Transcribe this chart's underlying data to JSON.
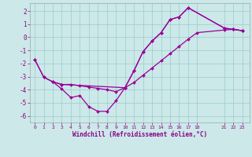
{
  "background_color": "#cce8e8",
  "grid_color": "#99cccc",
  "line_color": "#990099",
  "marker": "D",
  "marker_size": 2.0,
  "line_width": 0.9,
  "xlabel": "Windchill (Refroidissement éolien,°C)",
  "ylim": [
    -6.5,
    2.6
  ],
  "xlim": [
    -0.5,
    23.8
  ],
  "yticks": [
    -6,
    -5,
    -4,
    -3,
    -2,
    -1,
    0,
    1,
    2
  ],
  "xticks": [
    0,
    1,
    2,
    3,
    4,
    5,
    6,
    7,
    8,
    9,
    10,
    11,
    12,
    13,
    14,
    15,
    16,
    17,
    18,
    21,
    22,
    23
  ],
  "series1_x": [
    0,
    1,
    2,
    3,
    4,
    5,
    6,
    7,
    8,
    9,
    10,
    11,
    12,
    13,
    14,
    15,
    16,
    17,
    21,
    22,
    23
  ],
  "series1_y": [
    -1.7,
    -3.05,
    -3.4,
    -3.95,
    -4.6,
    -4.45,
    -5.3,
    -5.65,
    -5.65,
    -4.85,
    -3.85,
    -2.55,
    -1.1,
    -0.3,
    0.35,
    1.35,
    1.55,
    2.25,
    0.7,
    0.6,
    0.5
  ],
  "series2_x": [
    2,
    3,
    4,
    5,
    6,
    7,
    8,
    9,
    10,
    11,
    12,
    13,
    14,
    15,
    16,
    17,
    18,
    21,
    22,
    23
  ],
  "series2_y": [
    -3.4,
    -3.6,
    -3.6,
    -3.7,
    -3.8,
    -3.9,
    -4.0,
    -4.15,
    -3.85,
    -3.45,
    -2.9,
    -2.35,
    -1.8,
    -1.25,
    -0.7,
    -0.15,
    0.35,
    0.55,
    0.6,
    0.5
  ],
  "series3_x": [
    0,
    1,
    2,
    3,
    10,
    11,
    12,
    13,
    14,
    15,
    16,
    17,
    21,
    22,
    23
  ],
  "series3_y": [
    -1.7,
    -3.05,
    -3.4,
    -3.6,
    -3.85,
    -2.55,
    -1.1,
    -0.3,
    0.35,
    1.35,
    1.55,
    2.25,
    0.7,
    0.6,
    0.5
  ]
}
